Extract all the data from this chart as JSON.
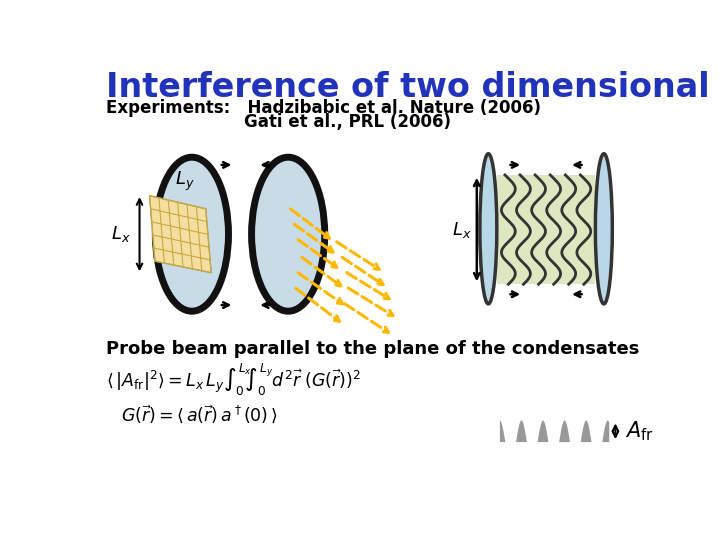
{
  "title": "Interference of two dimensional condensates",
  "title_color": "#2233BB",
  "title_fontsize": 24,
  "subtitle1": "Experiments:   Hadzibabic et al. Nature (2006)",
  "subtitle2": "                        Gati et al., PRL (2006)",
  "subtitle_fontsize": 12,
  "probe_text": "Probe beam parallel to the plane of the condensates",
  "probe_fontsize": 12,
  "bg_color": "#ffffff",
  "ellipse_fill": "#c8dce8",
  "ellipse_edge": "#111111",
  "square_fill": "#f5dfa0",
  "fringe_fill": "#dde8c0",
  "fringe_side_fill": "#b8d8e8",
  "dashed_arrow_color": "#FFB800",
  "gray_fill": "#999999",
  "Lx_label": "$L_x$",
  "Ly_label": "$L_y$",
  "Afr_label": "$A_{\\mathrm{fr}}$"
}
